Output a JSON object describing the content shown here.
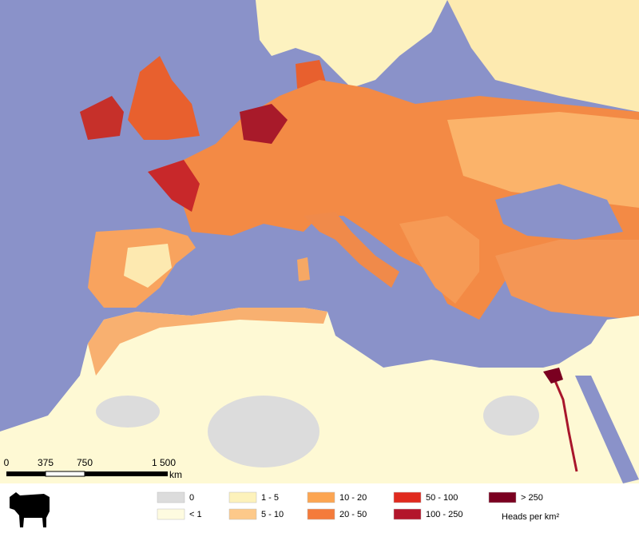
{
  "scale_bar": {
    "labels": [
      "0",
      "375",
      "750",
      "1 500"
    ],
    "unit": "km"
  },
  "legend": {
    "items": [
      {
        "label": "0",
        "color": "#dcdcdc"
      },
      {
        "label": "< 1",
        "color": "#fefbe0"
      },
      {
        "label": "1 - 5",
        "color": "#fdf2bb"
      },
      {
        "label": "5 - 10",
        "color": "#fdc98a"
      },
      {
        "label": "10 - 20",
        "color": "#fca552"
      },
      {
        "label": "20 - 50",
        "color": "#f47b3b"
      },
      {
        "label": "50 - 100",
        "color": "#e02a1e"
      },
      {
        "label": "100 - 250",
        "color": "#b3152b"
      },
      {
        "label": "> 250",
        "color": "#7a0020"
      }
    ],
    "title": "Heads per km²"
  }
}
